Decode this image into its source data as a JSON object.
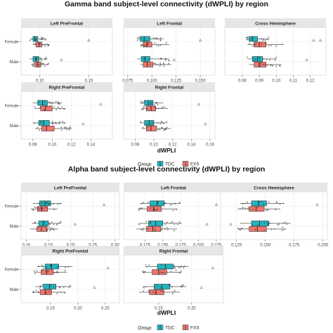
{
  "colors": {
    "TDC": "#1fb6c1",
    "FXS": "#f0756c",
    "strip": "#e6e6e6",
    "panel_bg": "#ffffff",
    "grid": "#ececec"
  },
  "legend": {
    "title": "Group",
    "items": [
      "TDC",
      "FXS"
    ]
  },
  "chart_data": [
    {
      "type": "box",
      "title": "Gamma band subject-level connectivity (dWPLI) by region",
      "xlabel": "dWPLI",
      "categories": [
        "Female",
        "Male"
      ],
      "groups": [
        "TDC",
        "FXS"
      ],
      "panels": [
        {
          "name": "Left PreFrontal",
          "xlim": [
            0.083,
            0.172
          ],
          "ticks": [
            0.1,
            0.15
          ],
          "ticklabels": [
            "0.10",
            "0.15"
          ],
          "boxes": {
            "Female": {
              "TDC": [
                0.09,
                0.093,
                0.095,
                0.098,
                0.107
              ],
              "FXS": [
                0.093,
                0.096,
                0.099,
                0.102,
                0.11
              ]
            },
            "Male": {
              "TDC": [
                0.089,
                0.093,
                0.096,
                0.099,
                0.108
              ],
              "FXS": [
                0.091,
                0.095,
                0.098,
                0.101,
                0.109
              ]
            }
          },
          "outliers": [
            0.15,
            0.122
          ]
        },
        {
          "name": "Left Frontal",
          "xlim": [
            0.073,
            0.163
          ],
          "ticks": [
            0.075,
            0.1,
            0.125,
            0.15
          ],
          "ticklabels": [
            "0.075",
            "0.100",
            "0.125",
            "0.150"
          ],
          "boxes": {
            "Female": {
              "TDC": [
                0.085,
                0.088,
                0.092,
                0.098,
                0.112
              ],
              "FXS": [
                0.088,
                0.091,
                0.095,
                0.1,
                0.118
              ]
            },
            "Male": {
              "TDC": [
                0.085,
                0.089,
                0.093,
                0.098,
                0.118
              ],
              "FXS": [
                0.088,
                0.091,
                0.095,
                0.101,
                0.12
              ]
            }
          },
          "outliers": [
            0.15,
            0.123
          ]
        },
        {
          "name": "Cross Hemisphere",
          "xlim": [
            0.071,
            0.128
          ],
          "ticks": [
            0.08,
            0.09,
            0.1,
            0.11,
            0.12
          ],
          "ticklabels": [
            "0.08",
            "0.09",
            "0.10",
            "0.11",
            "0.12"
          ],
          "boxes": {
            "Female": {
              "TDC": [
                0.082,
                0.084,
                0.086,
                0.089,
                0.096
              ],
              "FXS": [
                0.083,
                0.087,
                0.09,
                0.094,
                0.104
              ]
            },
            "Male": {
              "TDC": [
                0.083,
                0.086,
                0.089,
                0.092,
                0.1
              ],
              "FXS": [
                0.084,
                0.087,
                0.09,
                0.094,
                0.103
              ]
            }
          },
          "outliers": [
            0.122,
            0.118,
            0.126
          ]
        },
        {
          "name": "Right PreFrontal",
          "xlim": [
            0.07,
            0.16
          ],
          "ticks": [
            0.08,
            0.1,
            0.12,
            0.14
          ],
          "ticklabels": [
            "0.08",
            "0.10",
            "0.12",
            "0.14"
          ],
          "boxes": {
            "Female": {
              "TDC": [
                0.08,
                0.085,
                0.09,
                0.095,
                0.11
              ],
              "FXS": [
                0.082,
                0.088,
                0.093,
                0.1,
                0.114
              ]
            },
            "Male": {
              "TDC": [
                0.08,
                0.086,
                0.091,
                0.097,
                0.114
              ],
              "FXS": [
                0.082,
                0.089,
                0.094,
                0.102,
                0.12
              ]
            }
          },
          "outliers": [
            0.15,
            0.132
          ]
        },
        {
          "name": "Right Frontal",
          "xlim": [
            0.07,
            0.163
          ],
          "ticks": [
            0.08,
            0.1,
            0.12,
            0.14,
            0.16
          ],
          "ticklabels": [
            "0.08",
            "0.10",
            "0.12",
            "0.14",
            "0.16"
          ],
          "boxes": {
            "Female": {
              "TDC": [
                0.085,
                0.09,
                0.094,
                0.099,
                0.11
              ],
              "FXS": [
                0.087,
                0.092,
                0.097,
                0.102,
                0.115
              ]
            },
            "Male": {
              "TDC": [
                0.085,
                0.09,
                0.095,
                0.1,
                0.114
              ],
              "FXS": [
                0.087,
                0.092,
                0.097,
                0.103,
                0.118
              ]
            }
          },
          "outliers": [
            0.148,
            0.155
          ]
        }
      ]
    },
    {
      "type": "box",
      "title": "Alpha band subject-level connectivity (dWPLI) by region",
      "xlabel": "dWPLI",
      "categories": [
        "Female",
        "Male"
      ],
      "groups": [
        "TDC",
        "FXS"
      ],
      "panels": [
        {
          "name": "Left PreFrontal",
          "xlim": [
            0.093,
            0.305
          ],
          "ticks": [
            0.1,
            0.15,
            0.2,
            0.25,
            0.3
          ],
          "ticklabels": [
            "0.10",
            "0.15",
            "0.20",
            "0.25",
            "0.30"
          ],
          "boxes": {
            "Female": {
              "TDC": [
                0.115,
                0.13,
                0.142,
                0.155,
                0.18
              ],
              "FXS": [
                0.11,
                0.125,
                0.135,
                0.148,
                0.17
              ]
            },
            "Male": {
              "TDC": [
                0.112,
                0.128,
                0.138,
                0.15,
                0.178
              ],
              "FXS": [
                0.108,
                0.124,
                0.134,
                0.147,
                0.172
              ]
            }
          },
          "outliers": [
            0.275,
            0.21
          ]
        },
        {
          "name": "Left Frontal",
          "xlim": [
            0.098,
            0.232
          ],
          "ticks": [
            0.125,
            0.15,
            0.175,
            0.2,
            0.225
          ],
          "ticklabels": [
            "0.125",
            "0.150",
            "0.175",
            "0.200",
            "0.225"
          ],
          "boxes": {
            "Female": {
              "TDC": [
                0.118,
                0.132,
                0.142,
                0.152,
                0.175
              ],
              "FXS": [
                0.115,
                0.128,
                0.137,
                0.148,
                0.17
              ]
            },
            "Male": {
              "TDC": [
                0.116,
                0.13,
                0.14,
                0.15,
                0.176
              ],
              "FXS": [
                0.113,
                0.127,
                0.136,
                0.147,
                0.17
              ]
            }
          },
          "outliers": [
            0.225,
            0.212
          ]
        },
        {
          "name": "Cross Hemisphere",
          "xlim": [
            0.113,
            0.202
          ],
          "ticks": [
            0.125,
            0.15,
            0.175,
            0.2
          ],
          "ticklabels": [
            "0.125",
            "0.150",
            "0.175",
            "0.200"
          ],
          "boxes": {
            "Female": {
              "TDC": [
                0.128,
                0.138,
                0.144,
                0.151,
                0.166
              ],
              "FXS": [
                0.126,
                0.136,
                0.142,
                0.149,
                0.163
              ]
            },
            "Male": {
              "TDC": [
                0.128,
                0.138,
                0.145,
                0.153,
                0.172
              ],
              "FXS": [
                0.126,
                0.136,
                0.143,
                0.151,
                0.168
              ]
            }
          },
          "outliers": [
            0.195,
            0.12
          ]
        },
        {
          "name": "Right PreFrontal",
          "xlim": [
            0.1,
            0.272
          ],
          "ticks": [
            0.15,
            0.2,
            0.25
          ],
          "ticklabels": [
            "0.15",
            "0.20",
            "0.25"
          ],
          "boxes": {
            "Female": {
              "TDC": [
                0.125,
                0.14,
                0.152,
                0.165,
                0.19
              ],
              "FXS": [
                0.12,
                0.133,
                0.143,
                0.155,
                0.18
              ]
            },
            "Male": {
              "TDC": [
                0.122,
                0.137,
                0.148,
                0.16,
                0.188
              ],
              "FXS": [
                0.118,
                0.131,
                0.141,
                0.152,
                0.178
              ]
            }
          },
          "outliers": [
            0.255,
            0.23
          ]
        },
        {
          "name": "Right Frontal",
          "xlim": [
            0.1,
            0.245
          ],
          "ticks": [
            0.15,
            0.2
          ],
          "ticklabels": [
            "0.15",
            "0.20"
          ],
          "boxes": {
            "Female": {
              "TDC": [
                0.13,
                0.148,
                0.16,
                0.172,
                0.195
              ],
              "FXS": [
                0.125,
                0.14,
                0.15,
                0.162,
                0.185
              ]
            },
            "Male": {
              "TDC": [
                0.125,
                0.143,
                0.155,
                0.167,
                0.192
              ],
              "FXS": [
                0.12,
                0.136,
                0.146,
                0.158,
                0.182
              ]
            }
          },
          "outliers": [
            0.232,
            0.215
          ]
        }
      ]
    }
  ]
}
